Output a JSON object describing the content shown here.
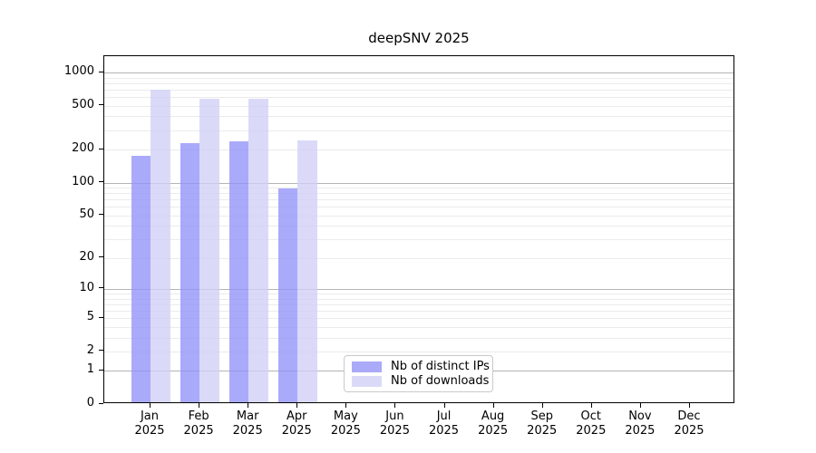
{
  "chart_data": {
    "type": "bar",
    "title": "deepSNV 2025",
    "y_scale": "log1p",
    "grid": {
      "major_color": "#b4b4b4",
      "minor_color": "#ebebeb",
      "horizontal": true
    },
    "x_categories": [
      {
        "line1": "Jan",
        "line2": "2025"
      },
      {
        "line1": "Feb",
        "line2": "2025"
      },
      {
        "line1": "Mar",
        "line2": "2025"
      },
      {
        "line1": "Apr",
        "line2": "2025"
      },
      {
        "line1": "May",
        "line2": "2025"
      },
      {
        "line1": "Jun",
        "line2": "2025"
      },
      {
        "line1": "Jul",
        "line2": "2025"
      },
      {
        "line1": "Aug",
        "line2": "2025"
      },
      {
        "line1": "Sep",
        "line2": "2025"
      },
      {
        "line1": "Oct",
        "line2": "2025"
      },
      {
        "line1": "Nov",
        "line2": "2025"
      },
      {
        "line1": "Dec",
        "line2": "2025"
      }
    ],
    "series": [
      {
        "name": "Nb of distinct IPs",
        "color": "#aaaaf8",
        "fill": "rgba(145,145,250,0.77)",
        "values": [
          170,
          220,
          230,
          85,
          0,
          0,
          0,
          0,
          0,
          0,
          0,
          0
        ]
      },
      {
        "name": "Nb of downloads",
        "color": "#dadaf8",
        "fill": "rgba(208,208,246,0.78)",
        "values": [
          670,
          560,
          560,
          235,
          0,
          0,
          0,
          0,
          0,
          0,
          0,
          0
        ]
      }
    ],
    "y_ticks": [
      {
        "value": 0,
        "label": "0"
      },
      {
        "value": 1,
        "label": "1"
      },
      {
        "value": 2,
        "label": "2"
      },
      {
        "value": 5,
        "label": "5"
      },
      {
        "value": 10,
        "label": "10"
      },
      {
        "value": 20,
        "label": "20"
      },
      {
        "value": 50,
        "label": "50"
      },
      {
        "value": 100,
        "label": "100"
      },
      {
        "value": 200,
        "label": "200"
      },
      {
        "value": 500,
        "label": "500"
      },
      {
        "value": 1000,
        "label": "1000"
      }
    ],
    "ylim": [
      0,
      1400
    ],
    "legend": {
      "position": "bottom-center"
    }
  }
}
